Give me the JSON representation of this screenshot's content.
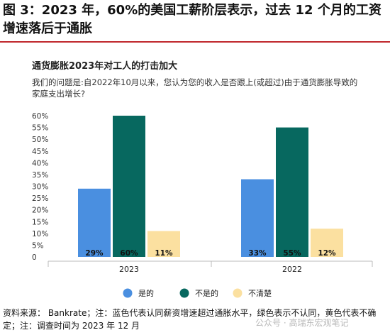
{
  "figure": {
    "title": "图 3：2023 年，60%的美国工薪阶层表示，过去 12 个月的工资增速落后于通胀"
  },
  "chart_data": {
    "type": "bar",
    "title": "通货膨胀2023年对工人的打击加大",
    "subtitle": "我们的问题是:自2022年10月以来，您认为您的收入是否跟上(或超过)由于通货膨胀导致的家庭支出增长?",
    "categories": [
      "2023",
      "2022"
    ],
    "series": [
      {
        "name": "是的",
        "values": [
          29,
          33
        ],
        "labels": [
          "29%",
          "33%"
        ],
        "color": "#4a8fe0"
      },
      {
        "name": "不是的",
        "values": [
          60,
          55
        ],
        "labels": [
          "60%",
          "55%"
        ],
        "color": "#07685f"
      },
      {
        "name": "不清楚",
        "values": [
          11,
          12
        ],
        "labels": [
          "11%",
          "12%"
        ],
        "color": "#fbe0a0"
      }
    ],
    "ylim": [
      0,
      60
    ],
    "yticks": [
      "0",
      "5%",
      "10%",
      "15%",
      "20%",
      "25%",
      "30%",
      "35%",
      "40%",
      "45%",
      "50%",
      "55%",
      "60%"
    ],
    "legend_position": "bottom",
    "grid": false
  },
  "footer": {
    "note": "资料来源： Bankrate；注：蓝色代表认同薪资增速超过通胀水平，绿色表示不认同，黄色代表不确定；注：调查时间为 2023 年 12 月"
  },
  "watermark": "公众号 · 高瑞东宏观笔记"
}
